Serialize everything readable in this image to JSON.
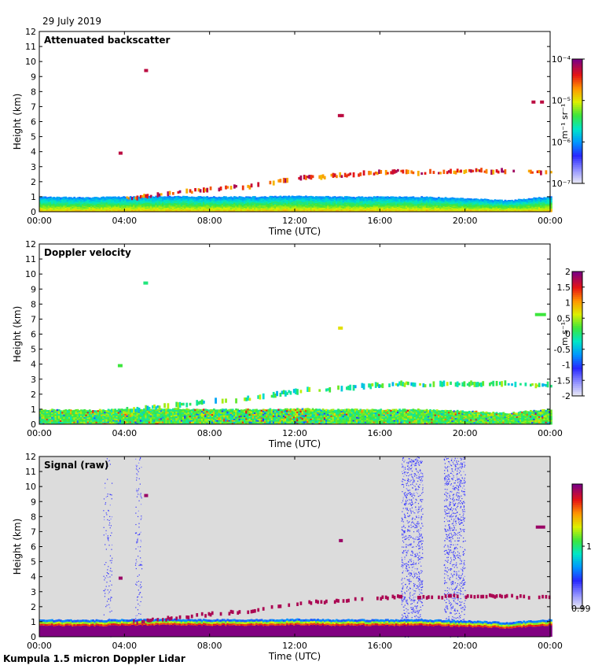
{
  "date_label": "29 July 2019",
  "footer_label": "Kumpula 1.5 micron Doppler Lidar",
  "chart_data": [
    {
      "type": "heatmap",
      "title": "Attenuated backscatter",
      "xlabel": "Time (UTC)",
      "ylabel": "Height (km)",
      "x_ticks": [
        "00:00",
        "04:00",
        "08:00",
        "12:00",
        "16:00",
        "20:00",
        "00:00"
      ],
      "y_ticks": [
        "0",
        "1",
        "2",
        "3",
        "4",
        "5",
        "6",
        "7",
        "8",
        "9",
        "10",
        "11",
        "12"
      ],
      "xlim": [
        0,
        24
      ],
      "ylim": [
        0,
        12
      ],
      "colorbar": {
        "scale": "log",
        "range": [
          1e-07,
          0.0001
        ],
        "tick_labels": [
          "10⁻⁷",
          "10⁻⁶",
          "10⁻⁵",
          "10⁻⁴"
        ],
        "units": "m⁻¹ sr⁻¹"
      },
      "features": {
        "boundary_layer_top_km": [
          [
            0,
            1.0
          ],
          [
            2,
            0.95
          ],
          [
            4,
            1.0
          ],
          [
            6,
            1.05
          ],
          [
            8,
            1.0
          ],
          [
            10,
            1.0
          ],
          [
            12,
            1.05
          ],
          [
            14,
            1.0
          ],
          [
            16,
            1.0
          ],
          [
            18,
            1.0
          ],
          [
            20,
            0.9
          ],
          [
            22,
            0.75
          ],
          [
            23,
            0.9
          ],
          [
            24,
            1.0
          ]
        ],
        "cloud_layer_km": [
          [
            4,
            0.9
          ],
          [
            6,
            1.2
          ],
          [
            8,
            1.5
          ],
          [
            10,
            1.7
          ],
          [
            12,
            2.2
          ],
          [
            13,
            2.3
          ],
          [
            14,
            2.4
          ],
          [
            16,
            2.6
          ],
          [
            17,
            2.7
          ],
          [
            18,
            2.6
          ],
          [
            20,
            2.7
          ],
          [
            22,
            2.7
          ],
          [
            24,
            2.6
          ]
        ],
        "isolated_clouds": [
          [
            3.8,
            3.9
          ],
          [
            5.0,
            9.4
          ],
          [
            14.1,
            6.4
          ],
          [
            14.2,
            6.4
          ],
          [
            23.2,
            7.3
          ],
          [
            23.6,
            7.3
          ]
        ]
      }
    },
    {
      "type": "heatmap",
      "title": "Doppler velocity",
      "xlabel": "Time (UTC)",
      "ylabel": "Height (km)",
      "x_ticks": [
        "00:00",
        "04:00",
        "08:00",
        "12:00",
        "16:00",
        "20:00",
        "00:00"
      ],
      "y_ticks": [
        "0",
        "1",
        "2",
        "3",
        "4",
        "5",
        "6",
        "7",
        "8",
        "9",
        "10",
        "11",
        "12"
      ],
      "xlim": [
        0,
        24
      ],
      "ylim": [
        0,
        12
      ],
      "colorbar": {
        "scale": "linear",
        "range": [
          -2,
          2
        ],
        "tick_labels": [
          "-2",
          "-1.5",
          "-1",
          "-0.5",
          "0",
          "0.5",
          "1",
          "1.5",
          "2"
        ],
        "units": "m s⁻¹"
      }
    },
    {
      "type": "heatmap",
      "title": "Signal (raw)",
      "xlabel": "Time (UTC)",
      "ylabel": "Height (km)",
      "x_ticks": [
        "00:00",
        "04:00",
        "08:00",
        "12:00",
        "16:00",
        "20:00",
        "00:00"
      ],
      "y_ticks": [
        "0",
        "1",
        "2",
        "3",
        "4",
        "5",
        "6",
        "7",
        "8",
        "9",
        "10",
        "11",
        "12"
      ],
      "xlim": [
        0,
        24
      ],
      "ylim": [
        0,
        12
      ],
      "colorbar": {
        "scale": "linear",
        "range": [
          0.99,
          1.01
        ],
        "tick_labels": [
          "0.99",
          "1"
        ]
      },
      "features": {
        "noise_bands_hours": [
          [
            17.0,
            18.0
          ],
          [
            19.0,
            20.0
          ],
          [
            3.0,
            3.4
          ],
          [
            4.5,
            4.8
          ]
        ]
      }
    }
  ]
}
